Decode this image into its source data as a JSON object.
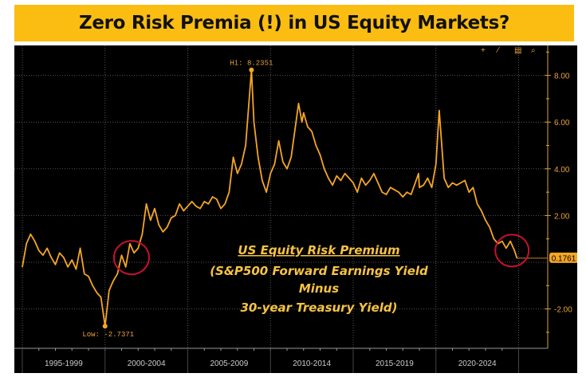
{
  "chart_data": {
    "type": "line",
    "title": "Zero Risk Premia (!) in US Equity Markets?",
    "x_tick_labels": [
      "1995-1999",
      "2000-2004",
      "2005-2009",
      "2010-2014",
      "2015-2019",
      "2020-2024"
    ],
    "y_tick_labels": [
      "8.00",
      "6.00",
      "4.00",
      "2.00",
      "-2.00"
    ],
    "ylim": [
      -3.2,
      9.2
    ],
    "xlim": [
      1995,
      2029
    ],
    "grid": true,
    "line_color": "#f5a623",
    "circle_color": "#c8102e",
    "series": [
      {
        "x": [
          1995.0,
          1995.25,
          1995.5,
          1995.75,
          1996.0,
          1996.25,
          1996.5,
          1996.75,
          1997.0,
          1997.25,
          1997.5,
          1997.75,
          1998.0,
          1998.25,
          1998.5,
          1998.75,
          1999.0,
          1999.25,
          1999.5,
          1999.75,
          2000.0,
          2000.25,
          2000.5,
          2000.75,
          2001.0,
          2001.25,
          2001.5,
          2001.75,
          2002.0,
          2002.25,
          2002.5,
          2002.75,
          2003.0,
          2003.25,
          2003.5,
          2003.75,
          2004.0,
          2004.25,
          2004.5,
          2004.75,
          2005.0,
          2005.25,
          2005.5,
          2005.75,
          2006.0,
          2006.25,
          2006.5,
          2006.75,
          2007.0,
          2007.25,
          2007.5,
          2007.75,
          2008.0,
          2008.25,
          2008.5,
          2008.85,
          2009.0,
          2009.25,
          2009.5,
          2009.75,
          2010.0,
          2010.25,
          2010.5,
          2010.75,
          2011.0,
          2011.25,
          2011.7,
          2011.9,
          2012.0,
          2012.25,
          2012.5,
          2012.75,
          2013.0,
          2013.25,
          2013.5,
          2013.75,
          2014.0,
          2014.25,
          2014.5,
          2014.75,
          2015.0,
          2015.25,
          2015.5,
          2015.75,
          2016.0,
          2016.25,
          2016.5,
          2016.75,
          2017.0,
          2017.25,
          2017.5,
          2017.75,
          2018.0,
          2018.25,
          2018.5,
          2018.95,
          2019.0,
          2019.25,
          2019.5,
          2019.75,
          2020.0,
          2020.2,
          2020.5,
          2020.75,
          2021.0,
          2021.25,
          2021.5,
          2021.75,
          2022.0,
          2022.25,
          2022.5,
          2022.75,
          2023.0,
          2023.25,
          2023.5,
          2023.75,
          2024.0,
          2024.25,
          2024.5,
          2024.75,
          2024.9
        ],
        "y": [
          -0.2,
          0.8,
          1.2,
          0.9,
          0.5,
          0.3,
          0.6,
          0.2,
          -0.1,
          0.4,
          0.2,
          -0.2,
          0.1,
          -0.3,
          0.6,
          -0.5,
          -0.6,
          -1.0,
          -1.3,
          -1.5,
          -2.7371,
          -1.2,
          -0.8,
          -0.5,
          0.3,
          -0.2,
          0.8,
          0.4,
          0.6,
          1.2,
          2.5,
          1.8,
          2.3,
          1.6,
          1.3,
          1.5,
          1.9,
          2.0,
          2.5,
          2.2,
          2.4,
          2.6,
          2.4,
          2.3,
          2.6,
          2.5,
          2.8,
          2.7,
          2.3,
          2.5,
          3.0,
          4.5,
          3.8,
          4.2,
          5.0,
          8.2351,
          6.0,
          4.5,
          3.5,
          3.0,
          3.8,
          4.2,
          5.2,
          4.3,
          4.0,
          4.5,
          6.8,
          6.0,
          6.4,
          5.8,
          5.6,
          5.0,
          4.6,
          4.0,
          3.6,
          3.3,
          3.7,
          3.5,
          3.8,
          3.6,
          3.4,
          3.0,
          3.6,
          3.3,
          3.5,
          3.8,
          3.4,
          3.0,
          2.9,
          3.2,
          3.1,
          3.0,
          2.8,
          3.0,
          2.9,
          3.8,
          3.2,
          3.3,
          3.6,
          3.2,
          4.2,
          6.5,
          3.6,
          3.2,
          3.4,
          3.3,
          3.4,
          3.5,
          3.0,
          3.2,
          2.5,
          2.2,
          1.8,
          1.5,
          1.0,
          0.8,
          0.9,
          0.6,
          0.9,
          0.5,
          0.1761
        ]
      }
    ],
    "annotations": {
      "high": "Hi: 8.2351",
      "low": "Low: -2.7371",
      "last": "0.1761"
    },
    "overlay_text": [
      "US Equity Risk Premium",
      "(S&P500 Forward Earnings Yield",
      "Minus",
      "30-year Treasury Yield)"
    ]
  }
}
